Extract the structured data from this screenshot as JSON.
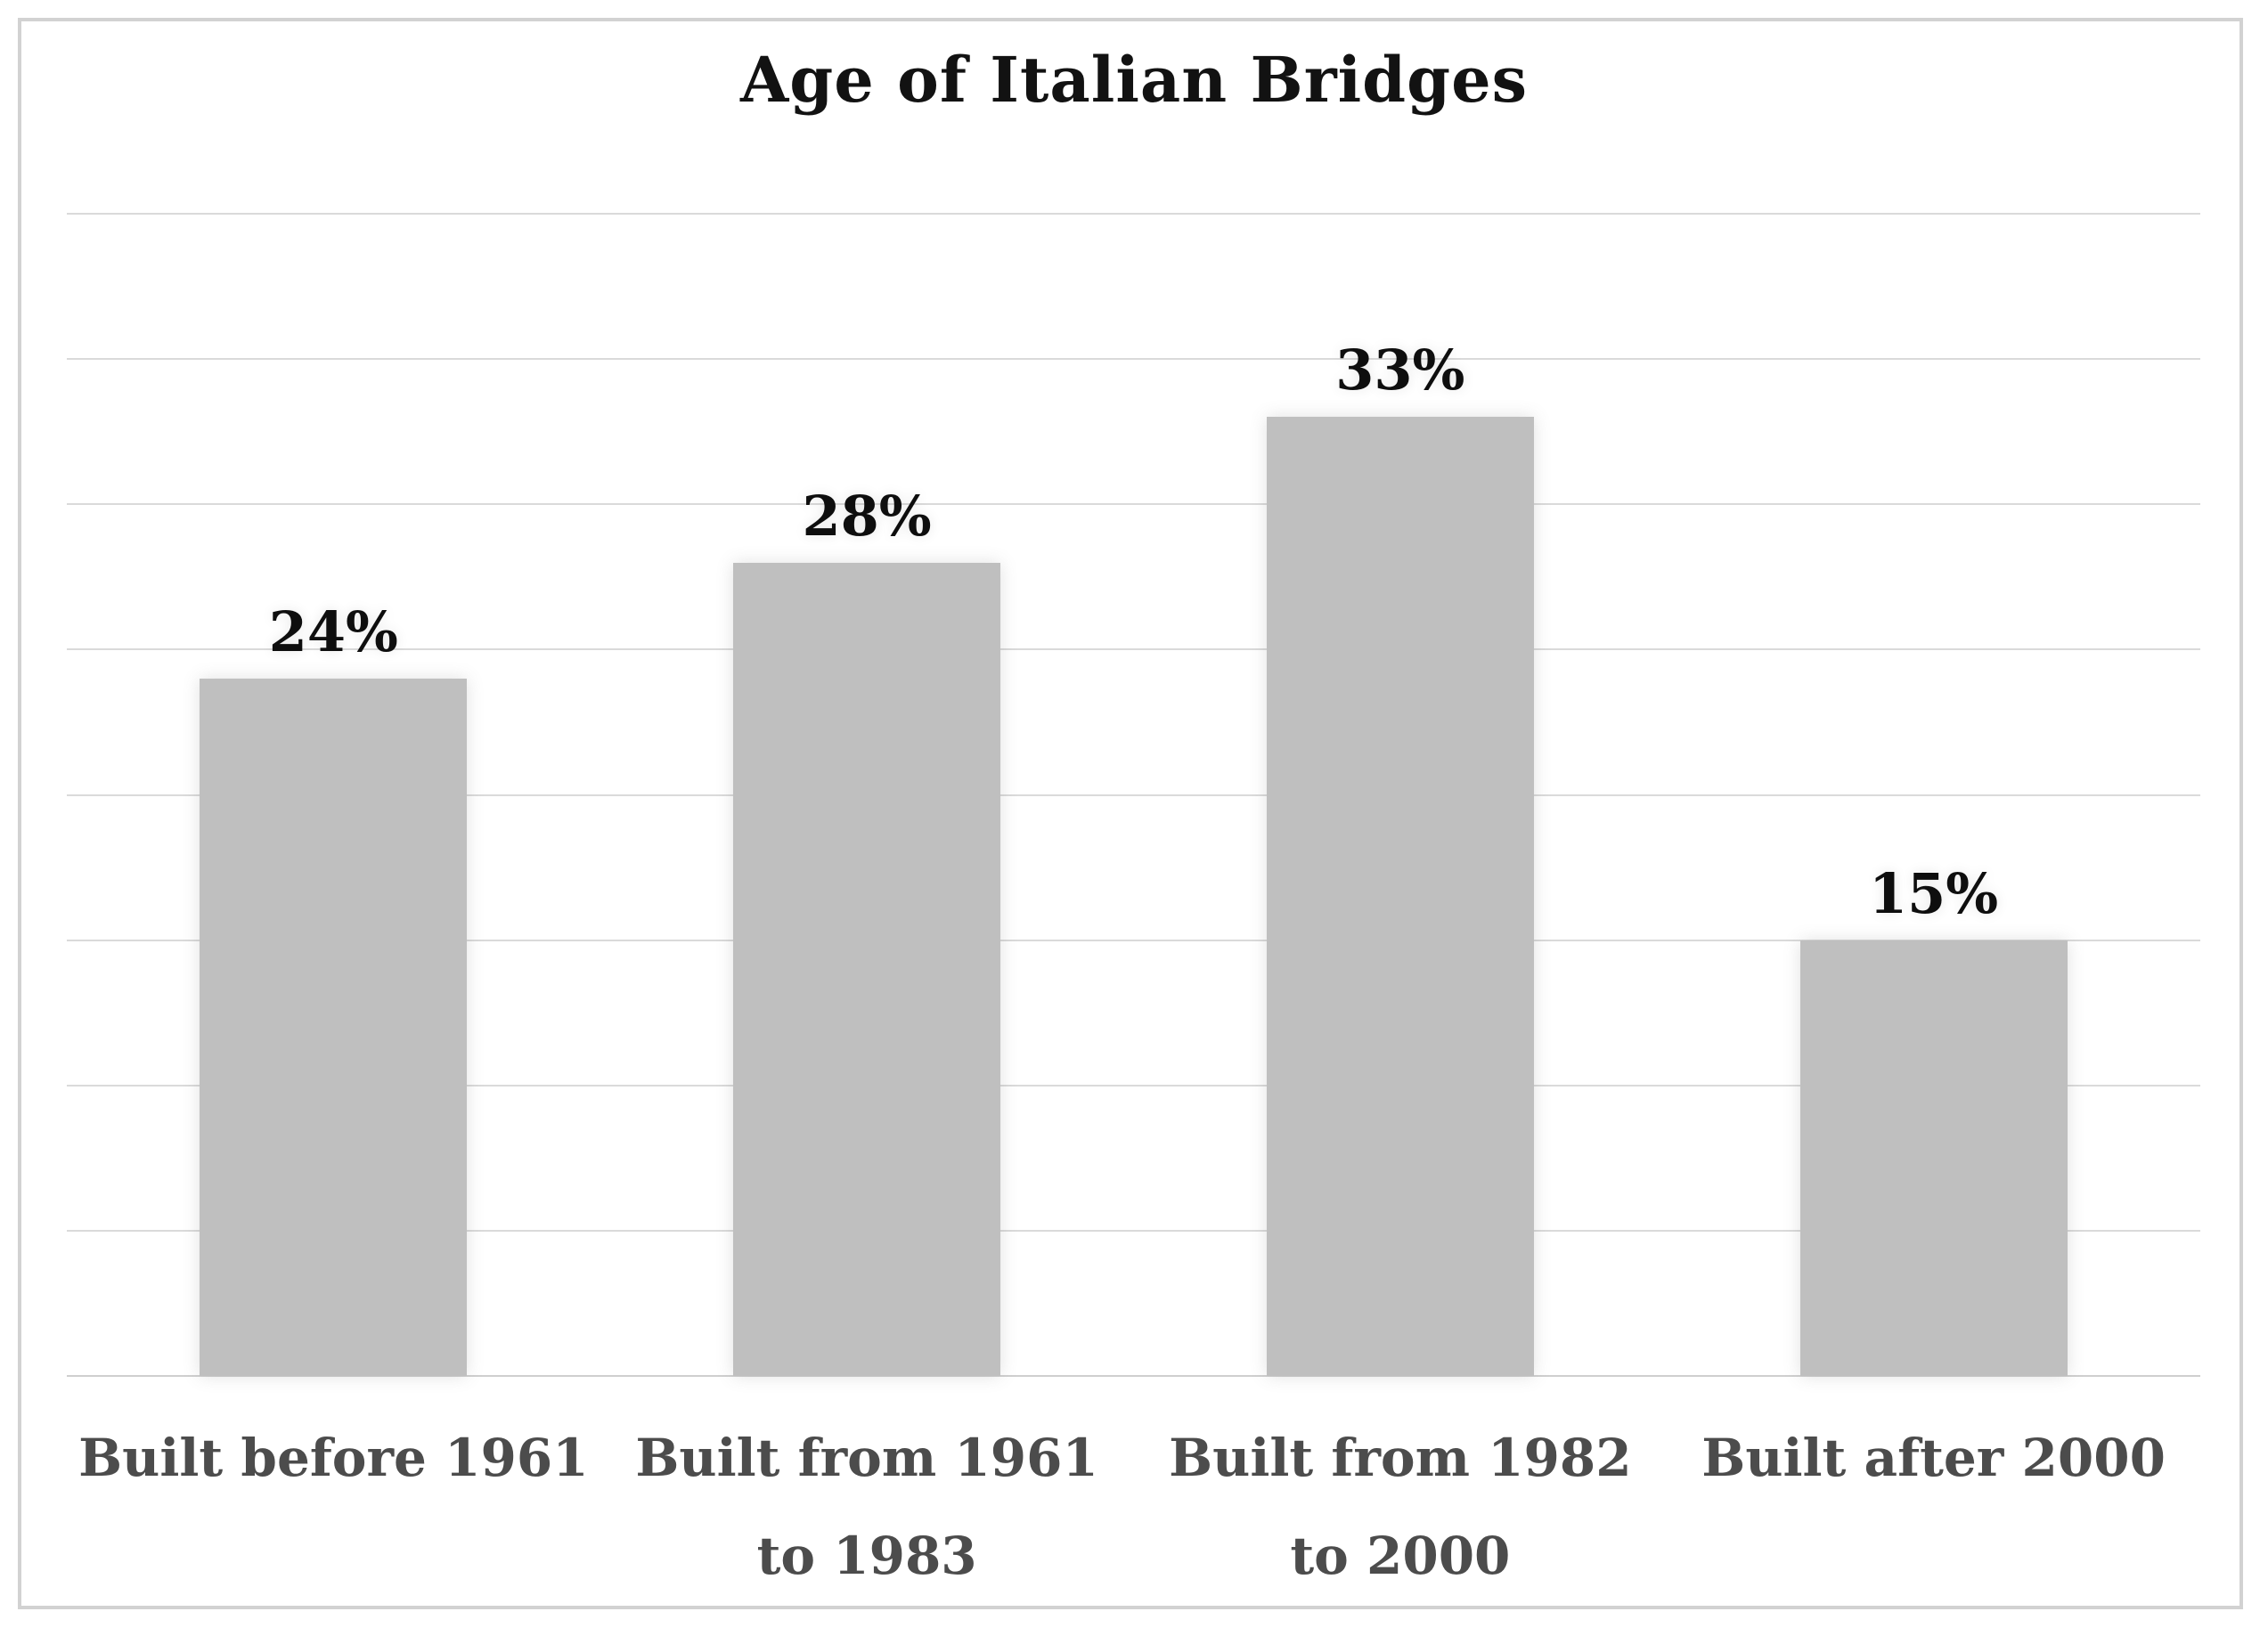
{
  "page": {
    "background": "#ffffff",
    "frame_border_color": "#d2d2d2"
  },
  "chart_data": {
    "type": "bar",
    "title": "Age of Italian Bridges",
    "categories": [
      "Built before 1961",
      "Built from 1961 to 1983",
      "Built from 1982 to 2000",
      "Built after 2000"
    ],
    "values": [
      24,
      28,
      33,
      15
    ],
    "value_labels": [
      "24%",
      "28%",
      "33%",
      "15%"
    ],
    "xlabel": "",
    "ylabel": "",
    "ylim": [
      0,
      40
    ],
    "gridline_step_percent": 5,
    "grid": "horizontal-only",
    "y_tick_labels_visible": false,
    "legend": "none",
    "bar_color": "#bfbfbf",
    "gridline_color": "#dadada",
    "title_color": "#121212",
    "value_label_color": "#0e0e0e",
    "category_label_color": "#4c4c4c"
  }
}
